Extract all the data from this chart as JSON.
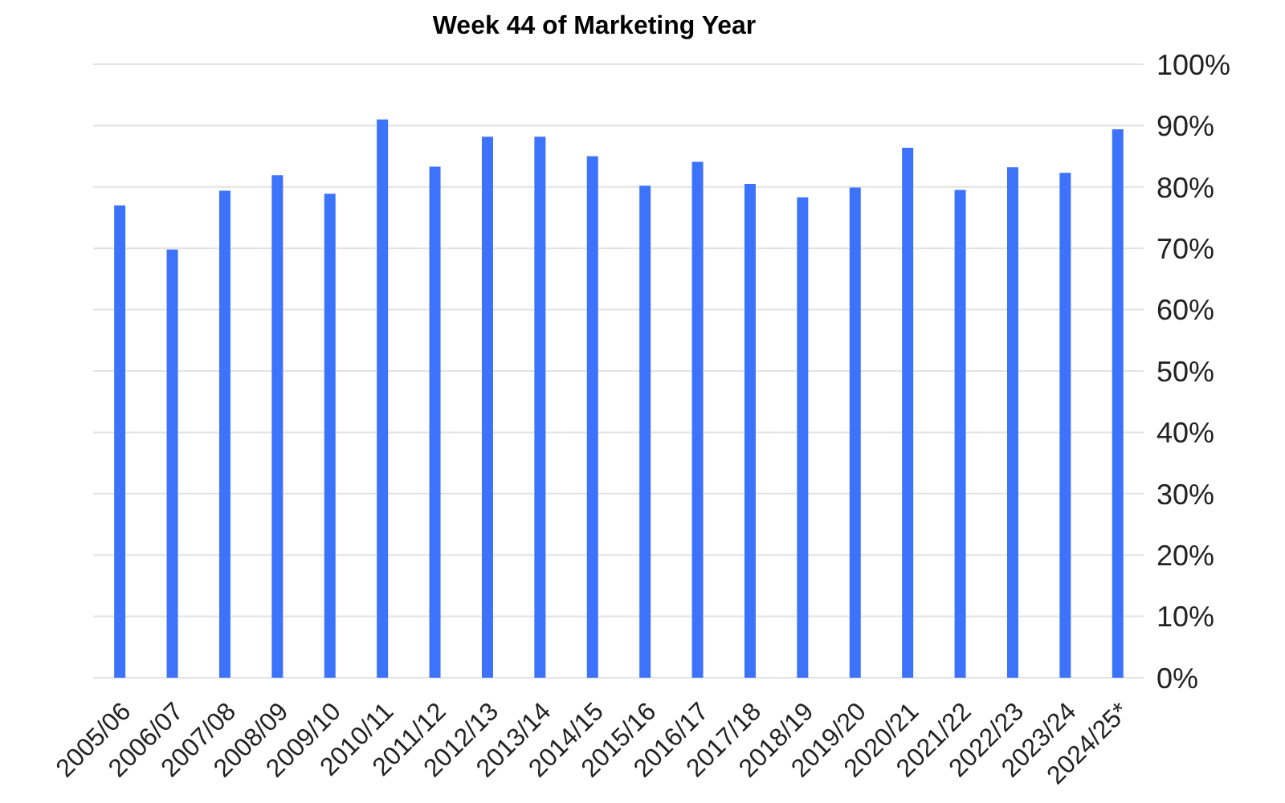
{
  "chart_data": {
    "type": "bar",
    "title": "Week 44 of Marketing Year",
    "categories": [
      "2005/06",
      "2006/07",
      "2007/08",
      "2008/09",
      "2009/10",
      "2010/11",
      "2011/12",
      "2012/13",
      "2013/14",
      "2014/15",
      "2015/16",
      "2016/17",
      "2017/18",
      "2018/19",
      "2019/20",
      "2020/21",
      "2021/22",
      "2022/23",
      "2023/24",
      "2024/25*"
    ],
    "values": [
      77.0,
      69.8,
      79.4,
      81.9,
      78.9,
      91.0,
      83.3,
      88.2,
      88.2,
      85.0,
      80.2,
      84.1,
      80.5,
      78.3,
      79.9,
      86.4,
      79.5,
      83.2,
      82.3,
      89.4
    ],
    "color": "#3d73fb",
    "ylim": [
      0,
      100
    ],
    "yticks": [
      {
        "value": 0,
        "label": "0%"
      },
      {
        "value": 10,
        "label": "10%"
      },
      {
        "value": 20,
        "label": "20%"
      },
      {
        "value": 30,
        "label": "30%"
      },
      {
        "value": 40,
        "label": "40%"
      },
      {
        "value": 50,
        "label": "50%"
      },
      {
        "value": 60,
        "label": "60%"
      },
      {
        "value": 70,
        "label": "70%"
      },
      {
        "value": 80,
        "label": "80%"
      },
      {
        "value": 90,
        "label": "90%"
      },
      {
        "value": 100,
        "label": "100%"
      }
    ],
    "grid": "y"
  }
}
